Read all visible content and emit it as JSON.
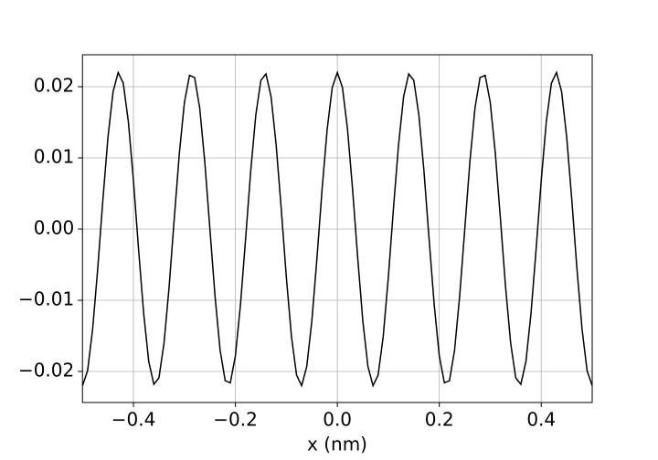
{
  "chart_data": {
    "type": "line",
    "x_label": "x (nm)",
    "x": [
      -0.5,
      -0.49,
      -0.48,
      -0.47,
      -0.46,
      -0.45,
      -0.44,
      -0.43,
      -0.42,
      -0.41,
      -0.4,
      -0.39,
      -0.38,
      -0.37,
      -0.36,
      -0.35,
      -0.34,
      -0.33,
      -0.32,
      -0.31,
      -0.3,
      -0.29,
      -0.28,
      -0.27,
      -0.26,
      -0.25,
      -0.24,
      -0.23,
      -0.22,
      -0.21,
      -0.2,
      -0.19,
      -0.18,
      -0.17,
      -0.16,
      -0.15,
      -0.14,
      -0.13,
      -0.12,
      -0.11,
      -0.1,
      -0.09,
      -0.08,
      -0.07,
      -0.06,
      -0.05,
      -0.04,
      -0.03,
      -0.02,
      -0.01,
      0,
      0.01,
      0.02,
      0.03,
      0.04,
      0.05,
      0.06,
      0.07,
      0.08,
      0.09,
      0.1,
      0.11,
      0.12,
      0.13,
      0.14,
      0.15,
      0.16,
      0.17,
      0.18,
      0.19,
      0.2,
      0.21,
      0.22,
      0.23,
      0.24,
      0.25,
      0.26,
      0.27,
      0.28,
      0.29,
      0.3,
      0.31,
      0.32,
      0.33,
      0.34,
      0.35,
      0.36,
      0.37,
      0.38,
      0.39,
      0.4,
      0.41,
      0.42,
      0.43,
      0.44,
      0.45,
      0.46,
      0.47,
      0.48,
      0.49,
      0.5
    ],
    "series": [
      {
        "color": "#000000",
        "values": [
          -0.022,
          -0.0199,
          -0.014,
          -0.0055,
          0.0041,
          0.0129,
          0.0193,
          0.022,
          0.0205,
          0.0151,
          0.0068,
          -0.0028,
          -0.0118,
          -0.0186,
          -0.0218,
          -0.0209,
          -0.016,
          -0.0081,
          0.0014,
          0.0106,
          0.0178,
          0.0216,
          0.0213,
          0.017,
          0.0094,
          0,
          -0.0094,
          -0.017,
          -0.0213,
          -0.0216,
          -0.0178,
          -0.0106,
          -0.0014,
          0.0081,
          0.016,
          0.0209,
          0.0218,
          0.0186,
          0.0118,
          0.0028,
          -0.0068,
          -0.0151,
          -0.0205,
          -0.022,
          -0.0193,
          -0.0129,
          -0.0041,
          0.0055,
          0.014,
          0.0199,
          0.022,
          0.0199,
          0.014,
          0.0055,
          -0.0041,
          -0.0129,
          -0.0193,
          -0.022,
          -0.0205,
          -0.0151,
          -0.0068,
          0.0028,
          0.0118,
          0.0186,
          0.0218,
          0.0209,
          0.016,
          0.0081,
          -0.0014,
          -0.0106,
          -0.0178,
          -0.0216,
          -0.0213,
          -0.017,
          -0.0094,
          0,
          0.0094,
          0.017,
          0.0213,
          0.0216,
          0.0178,
          0.0106,
          0.0014,
          -0.0081,
          -0.016,
          -0.0209,
          -0.0218,
          -0.0186,
          -0.0118,
          -0.0028,
          0.0068,
          0.0151,
          0.0205,
          0.022,
          0.0193,
          0.0129,
          0.0041,
          -0.0055,
          -0.014,
          -0.0199,
          -0.022
        ]
      }
    ],
    "xlim": [
      -0.5,
      0.5
    ],
    "ylim": [
      -0.02436,
      0.02449
    ],
    "xticks": [
      {
        "value": -0.4,
        "label": "−0.4"
      },
      {
        "value": -0.2,
        "label": "−0.2"
      },
      {
        "value": 0,
        "label": "0.0"
      },
      0.2,
      0.4
    ],
    "yticks": [
      {
        "value": -0.02,
        "label": "−0.02"
      },
      {
        "value": -0.01,
        "label": "−0.01"
      },
      {
        "value": 0,
        "label": "0.00"
      },
      0.01,
      0.02
    ],
    "grid": true
  }
}
